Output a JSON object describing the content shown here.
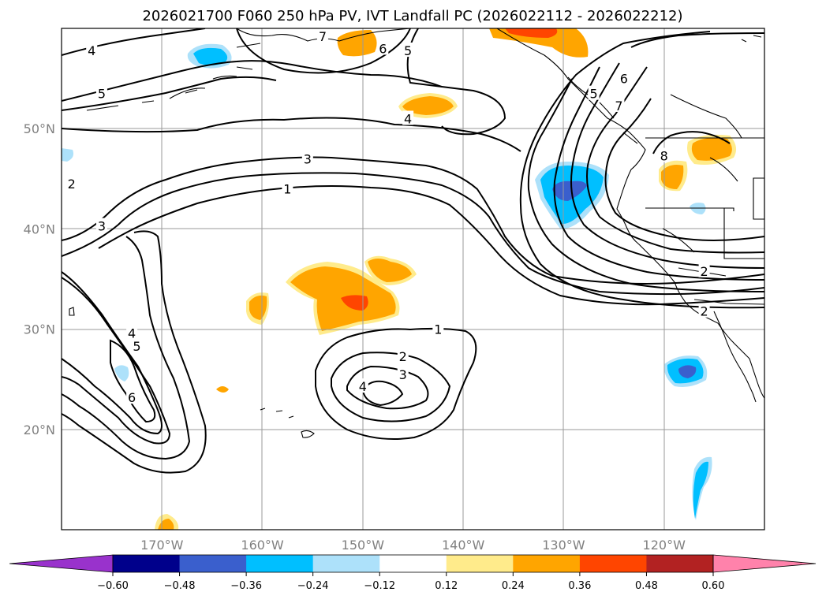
{
  "chart_data": {
    "type": "contour-map",
    "title": "2026021700 F060 250 hPa PV, IVT Landfall PC (2026022112 - 2026022212)",
    "map": {
      "lon_range": [
        -180,
        -110
      ],
      "lat_range": [
        10,
        60
      ],
      "lon_ticks": [
        {
          "value": -170,
          "label": "170°W"
        },
        {
          "value": -160,
          "label": "160°W"
        },
        {
          "value": -150,
          "label": "150°W"
        },
        {
          "value": -140,
          "label": "140°W"
        },
        {
          "value": -130,
          "label": "130°W"
        },
        {
          "value": -120,
          "label": "120°W"
        }
      ],
      "lat_ticks": [
        {
          "value": 50,
          "label": "50°N"
        },
        {
          "value": 40,
          "label": "40°N"
        },
        {
          "value": 30,
          "label": "30°N"
        },
        {
          "value": 20,
          "label": "20°N"
        }
      ],
      "grid": true
    },
    "contour_field": "250 hPa PV",
    "contour_labels": [
      {
        "value": "4",
        "lon": -177,
        "lat": 57.8
      },
      {
        "value": "5",
        "lon": -176,
        "lat": 53.5
      },
      {
        "value": "3",
        "lon": -176,
        "lat": 40.3
      },
      {
        "value": "2",
        "lon": -179,
        "lat": 44.5
      },
      {
        "value": "3",
        "lon": -155.5,
        "lat": 47
      },
      {
        "value": "1",
        "lon": -157.5,
        "lat": 44
      },
      {
        "value": "6",
        "lon": -148,
        "lat": 58
      },
      {
        "value": "5",
        "lon": -145.5,
        "lat": 57.8
      },
      {
        "value": "4",
        "lon": -145.5,
        "lat": 51
      },
      {
        "value": "7",
        "lon": -154,
        "lat": 59.2
      },
      {
        "value": "1",
        "lon": -142.5,
        "lat": 30
      },
      {
        "value": "2",
        "lon": -146,
        "lat": 27.3
      },
      {
        "value": "3",
        "lon": -146,
        "lat": 25.5
      },
      {
        "value": "4",
        "lon": -150,
        "lat": 24.3
      },
      {
        "value": "6",
        "lon": -124,
        "lat": 55
      },
      {
        "value": "7",
        "lon": -124.5,
        "lat": 52.3
      },
      {
        "value": "5",
        "lon": -127,
        "lat": 53.5
      },
      {
        "value": "8",
        "lon": -120,
        "lat": 47.3
      },
      {
        "value": "2",
        "lon": -116,
        "lat": 31.8
      },
      {
        "value": "2",
        "lon": -116,
        "lat": 35.8
      },
      {
        "value": "4",
        "lon": -173,
        "lat": 29.6
      },
      {
        "value": "5",
        "lon": -172.5,
        "lat": 28.3
      },
      {
        "value": "6",
        "lon": -173,
        "lat": 23.2
      }
    ],
    "shading_field": "IVT Landfall PC",
    "colorbar": {
      "extend": "both",
      "ticks": [
        "−0.60",
        "−0.48",
        "−0.36",
        "−0.24",
        "−0.12",
        "0.12",
        "0.24",
        "0.36",
        "0.48",
        "0.60"
      ],
      "levels": [
        -0.6,
        -0.48,
        -0.36,
        -0.24,
        -0.12,
        0.12,
        0.24,
        0.36,
        0.48,
        0.6
      ],
      "colors": [
        "#9932CC",
        "#00008B",
        "#3A5FCD",
        "#00BFFF",
        "#ADE1FA",
        "#FFFFFF",
        "#FFEB8B",
        "#FFA500",
        "#FF4500",
        "#B22222",
        "#FF82AB"
      ]
    },
    "shaded_areas": [
      {
        "lon": -165.3,
        "lat": 57.5,
        "value": -0.3
      },
      {
        "lon": -145.7,
        "lat": 52.1,
        "value": 0.3
      },
      {
        "lon": -151,
        "lat": 58.6,
        "value": 0.3
      },
      {
        "lon": -137.5,
        "lat": 59.5,
        "value": 0.4
      },
      {
        "lon": -130.5,
        "lat": 43.5,
        "value": -0.35
      },
      {
        "lon": -130.3,
        "lat": 43.2,
        "value": -0.5
      },
      {
        "lon": -119.5,
        "lat": 45.5,
        "value": 0.25
      },
      {
        "lon": -115,
        "lat": 47.8,
        "value": 0.3
      },
      {
        "lon": -118,
        "lat": 41.8,
        "value": -0.2
      },
      {
        "lon": -152.5,
        "lat": 35,
        "value": 0.25
      },
      {
        "lon": -150,
        "lat": 32.2,
        "value": 0.3
      },
      {
        "lon": -149.5,
        "lat": 32.5,
        "value": 0.4
      },
      {
        "lon": -145.3,
        "lat": 35.6,
        "value": 0.3
      },
      {
        "lon": -160.4,
        "lat": 31.7,
        "value": 0.28
      },
      {
        "lon": -118.3,
        "lat": 25.8,
        "value": -0.3
      },
      {
        "lon": -118.4,
        "lat": 25.8,
        "value": -0.5
      },
      {
        "lon": -116.7,
        "lat": 14.3,
        "value": -0.3
      },
      {
        "lon": -164,
        "lat": 24,
        "value": 0.25
      },
      {
        "lon": -170,
        "lat": 10.5,
        "value": 0.3
      },
      {
        "lon": -174,
        "lat": 25.5,
        "value": -0.2
      }
    ]
  }
}
